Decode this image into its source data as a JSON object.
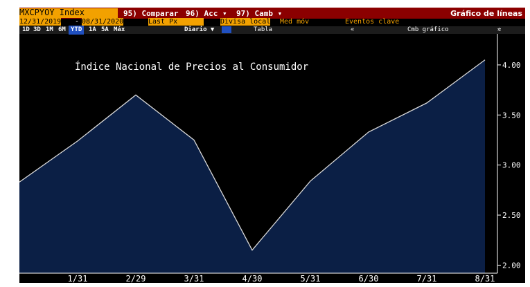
{
  "toolbar": {
    "ticker": "MXCPYOY Index",
    "compare": "95) Comparar",
    "actions": "96) Acc ▾",
    "change": "97) Camb ▾",
    "chart_kind": "Gráfico de líneas",
    "start_date": "12/31/2019",
    "dash": "-",
    "end_date": "08/31/2020",
    "field": "Last Px",
    "currency": "Divisa local",
    "moving_avg": "Med móv",
    "events": "Eventos clave",
    "ranges": [
      "1D",
      "3D",
      "1M",
      "6M",
      "YTD",
      "1A",
      "5A",
      "Máx"
    ],
    "period": "Diario ▼",
    "table": "Tabla",
    "collapse": "«",
    "change_chart": "Cmb gráfico"
  },
  "chart_data": {
    "type": "area",
    "title": "Índice Nacional de Precios al Consumidor",
    "categories": [
      null,
      "1/31",
      "2/29",
      "3/31",
      "4/30",
      "5/31",
      "6/30",
      "7/31",
      "8/31"
    ],
    "values": [
      2.83,
      3.24,
      3.7,
      3.25,
      2.15,
      2.84,
      3.33,
      3.62,
      4.05
    ],
    "color": "#0b1f45",
    "line_color": "#d8d8d8",
    "ylim": [
      1.92,
      4.31
    ],
    "yticks": [
      {
        "value": 2,
        "label": "2.00"
      },
      {
        "value": 2.5,
        "label": "2.50"
      },
      {
        "value": 3,
        "label": "3.00"
      },
      {
        "value": 3.5,
        "label": "3.50"
      },
      {
        "value": 4,
        "label": "4.00"
      }
    ],
    "grid": false
  }
}
